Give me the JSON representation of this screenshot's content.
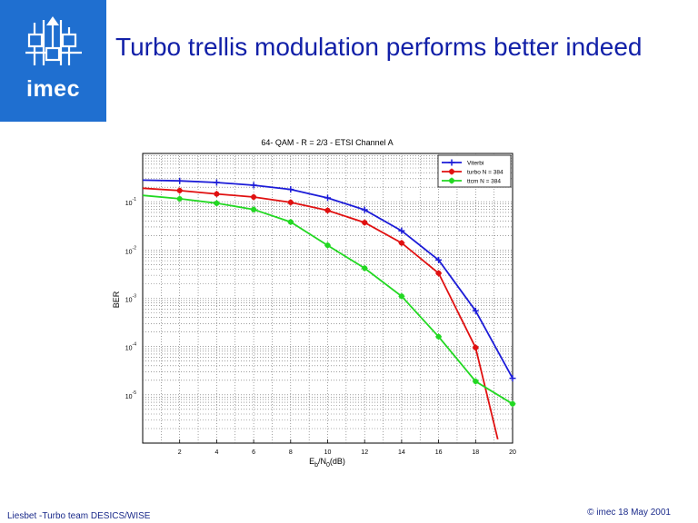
{
  "slide": {
    "title": "Turbo trellis modulation performs better indeed",
    "logo_text": "imec",
    "footer_left": "Liesbet -Turbo team DESICS/WISE",
    "footer_right": "© imec 18 May 2001"
  },
  "colors": {
    "logo_bg": "#1f6fd0",
    "title_text": "#1220a8",
    "viterbi": "#1c1cd8",
    "turbo": "#e01010",
    "ttcm": "#22d822"
  },
  "chart_data": {
    "type": "line",
    "title": "64- QAM  -  R = 2/3  -  ETSI Channel A",
    "xlabel": "Eb/N0(dB)",
    "ylabel": "BER",
    "y_scale": "log",
    "xlim": [
      0,
      20
    ],
    "ylim": [
      1e-06,
      1
    ],
    "grid": true,
    "legend_position": "top-right",
    "x_ticks": [
      "2",
      "4",
      "6",
      "8",
      "10",
      "12",
      "14",
      "16",
      "18",
      "20"
    ],
    "y_ticks": [
      {
        "base": "10",
        "exp": "-1",
        "value": 0.1
      },
      {
        "base": "10",
        "exp": "-2",
        "value": 0.01
      },
      {
        "base": "10",
        "exp": "-3",
        "value": 0.001
      },
      {
        "base": "10",
        "exp": "-4",
        "value": 0.0001
      },
      {
        "base": "10",
        "exp": "-5",
        "value": 1e-05
      }
    ],
    "series": [
      {
        "name": "Viterbi",
        "color": "#1c1cd8",
        "marker": "plus",
        "x": [
          0,
          2,
          4,
          6,
          8,
          10,
          12,
          14,
          16,
          18,
          20
        ],
        "y": [
          0.28,
          0.27,
          0.25,
          0.22,
          0.18,
          0.12,
          0.068,
          0.025,
          0.0062,
          0.00055,
          2.2e-05
        ]
      },
      {
        "name": "turbo N = 384",
        "color": "#e01010",
        "marker": "star",
        "x": [
          0,
          2,
          4,
          6,
          8,
          10,
          12,
          14,
          16,
          18,
          19.2
        ],
        "y": [
          0.19,
          0.17,
          0.145,
          0.125,
          0.097,
          0.066,
          0.037,
          0.014,
          0.0033,
          9.5e-05,
          1.2e-06
        ]
      },
      {
        "name": "ttcm N = 384",
        "color": "#22d822",
        "marker": "star",
        "x": [
          0,
          2,
          4,
          6,
          8,
          10,
          12,
          14,
          16,
          18,
          20
        ],
        "y": [
          0.135,
          0.115,
          0.093,
          0.069,
          0.038,
          0.0125,
          0.0042,
          0.0011,
          0.00016,
          1.9e-05,
          6.5e-06
        ]
      }
    ]
  }
}
